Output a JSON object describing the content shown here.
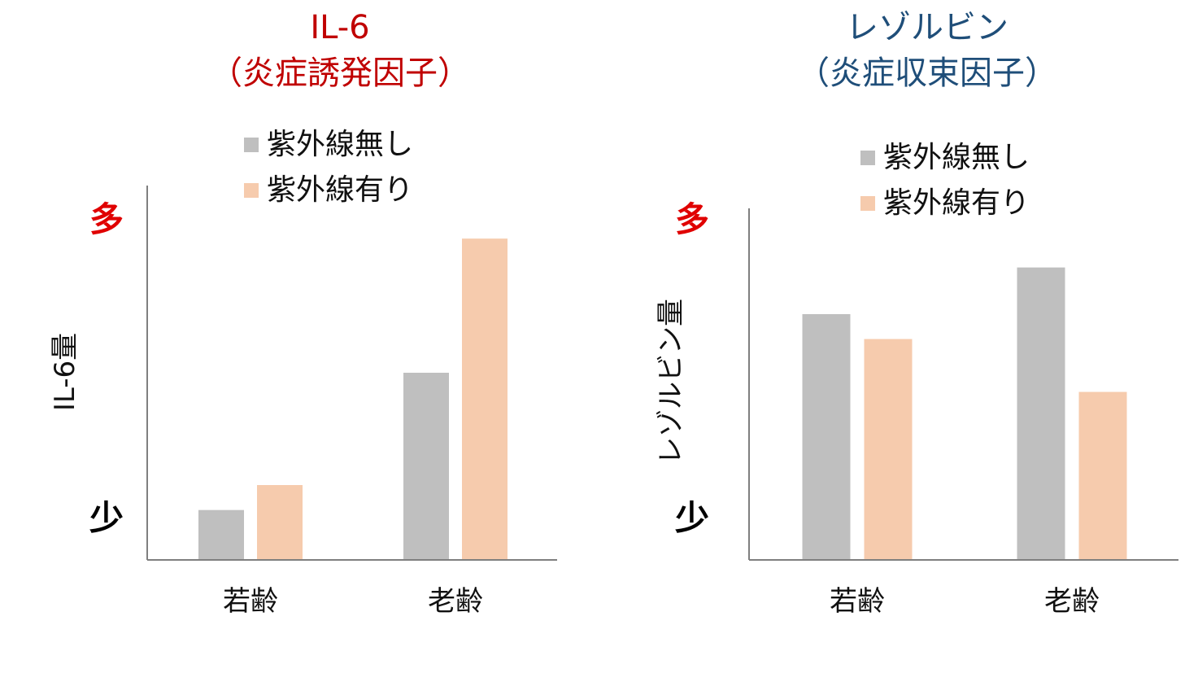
{
  "colors": {
    "series_no_uv": "#bfbfbf",
    "series_uv": "#f6cbad",
    "title_left": "#c00000",
    "title_right": "#1f4e79",
    "high_label": "#e00000",
    "low_label": "#000000",
    "axis": "#7f7f7f"
  },
  "chart_data": [
    {
      "type": "bar",
      "title_lines": [
        "IL-6",
        "（炎症誘発因子）"
      ],
      "ylabel": "IL-6量",
      "y_high_label": "多",
      "y_low_label": "少",
      "categories": [
        "若齢",
        "老齢"
      ],
      "series": [
        {
          "name": "紫外線無し",
          "values": [
            16,
            60
          ]
        },
        {
          "name": "紫外線有り",
          "values": [
            24,
            103
          ]
        }
      ],
      "ylim": [
        0,
        120
      ],
      "grid": false,
      "legend_position": "top"
    },
    {
      "type": "bar",
      "title_lines": [
        "レゾルビン",
        "（炎症収束因子）"
      ],
      "ylabel": "レゾルビン量",
      "y_high_label": "多",
      "y_low_label": "少",
      "categories": [
        "若齢",
        "老齢"
      ],
      "series": [
        {
          "name": "紫外線無し",
          "values": [
            79,
            94
          ]
        },
        {
          "name": "紫外線有り",
          "values": [
            71,
            54
          ]
        }
      ],
      "ylim": [
        0,
        113
      ],
      "grid": false,
      "legend_position": "top"
    }
  ]
}
